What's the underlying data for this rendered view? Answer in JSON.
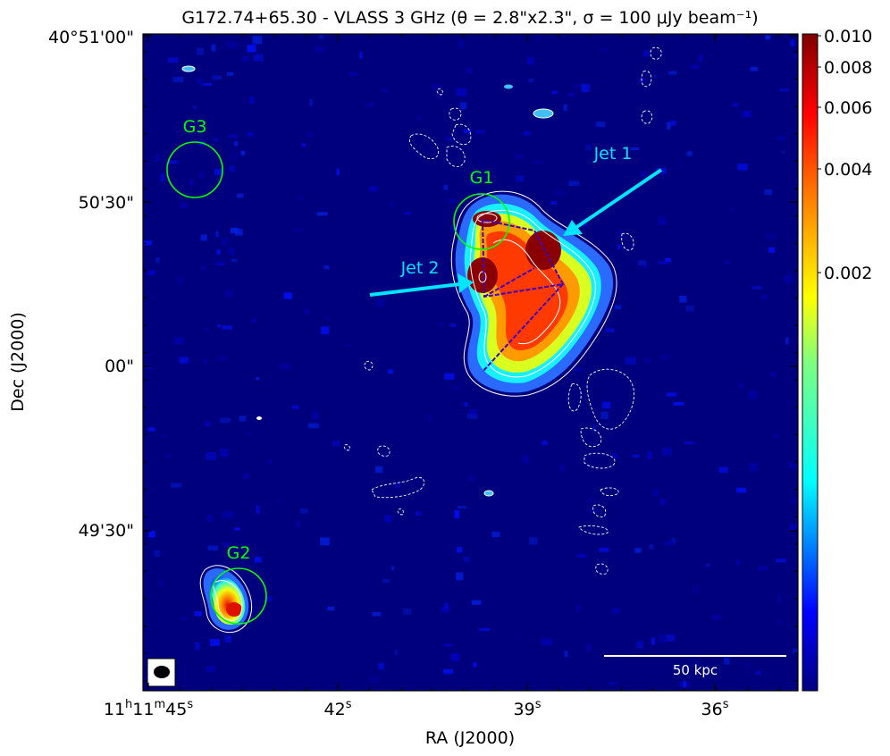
{
  "figure": {
    "title": "G172.74+65.30 - VLASS 3 GHz (θ = 2.8\"x2.3\", σ =  100 μJy beam⁻¹)",
    "xlabel": "RA (J2000)",
    "ylabel": "Dec (J2000)",
    "ra_ticks": [
      {
        "prefix": "11",
        "h": "h",
        "mid": "11",
        "m": "m",
        "sec": "45",
        "s": "s"
      },
      {
        "label": "42",
        "s": "s"
      },
      {
        "label": "39",
        "s": "s"
      },
      {
        "label": "36",
        "s": "s"
      }
    ],
    "dec_ticks": [
      "40°51'00\"",
      "50'30\"",
      "00\"",
      "49'30\""
    ],
    "colorbar": {
      "ticks": [
        "0.010",
        "0.008",
        "0.006",
        "0.004",
        "0.002"
      ],
      "values": [
        0.01,
        0.008,
        0.006,
        0.004,
        0.002
      ],
      "colormap": "jet",
      "scale": "nonlinear"
    },
    "annotations": {
      "jet1": "Jet 1",
      "jet2": "Jet 2",
      "g1": "G1",
      "g2": "G2",
      "g3": "G3"
    },
    "scalebar": "50 kpc",
    "colors": {
      "background": "#00007f",
      "galaxy_circle": "#00ff00",
      "jet_arrow": "#00e5ff",
      "contour": "#ffffff"
    }
  }
}
